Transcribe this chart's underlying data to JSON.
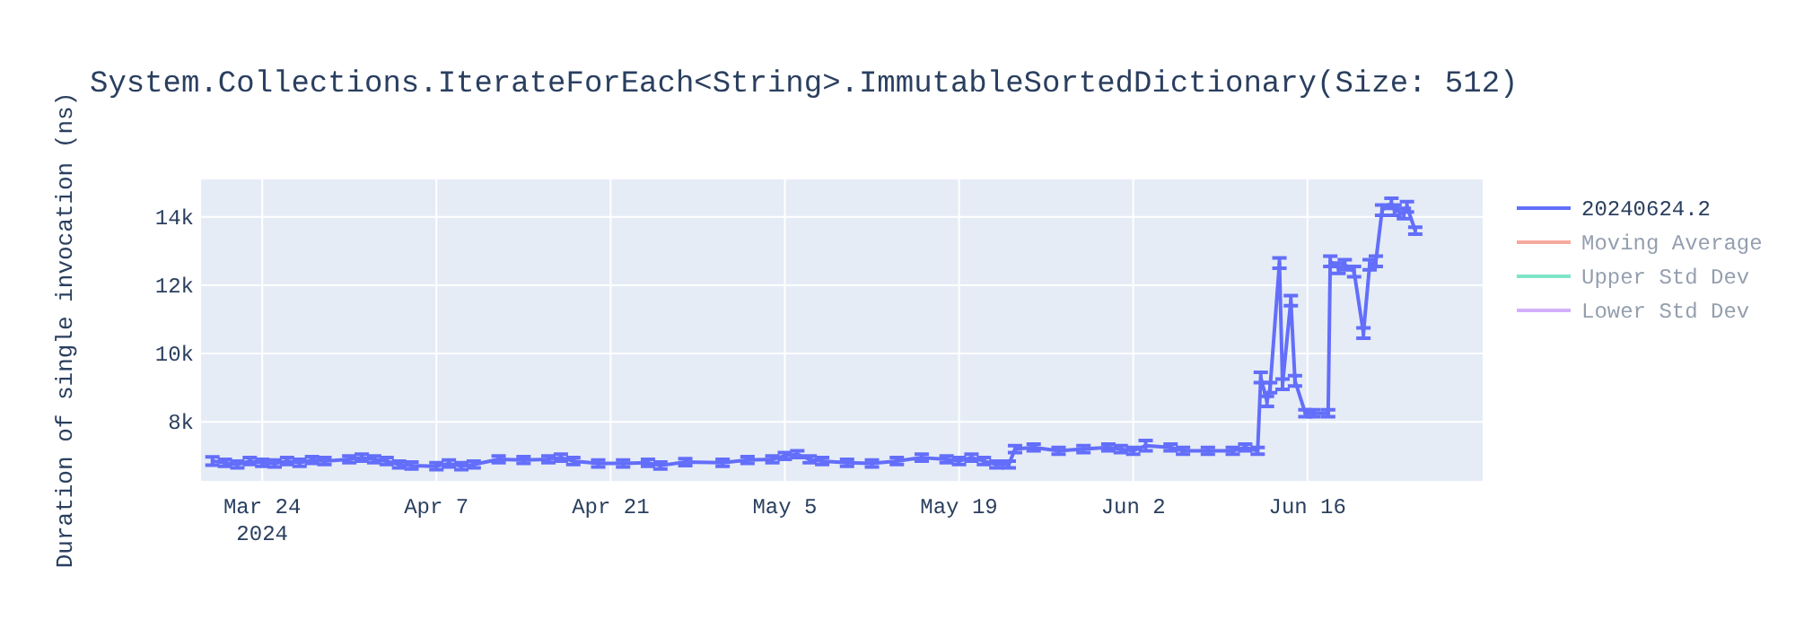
{
  "chart_data": {
    "type": "line",
    "title": "System.Collections.IterateForEach<String>.ImmutableSortedDictionary(Size: 512)",
    "ylabel": "Duration of single invocation (ns)",
    "x": [
      "2024-03-20",
      "2024-03-21",
      "2024-03-22",
      "2024-03-23",
      "2024-03-24",
      "2024-03-25",
      "2024-03-26",
      "2024-03-27",
      "2024-03-28",
      "2024-03-29",
      "2024-03-31",
      "2024-04-01",
      "2024-04-02",
      "2024-04-03",
      "2024-04-04",
      "2024-04-05",
      "2024-04-07",
      "2024-04-08",
      "2024-04-09",
      "2024-04-10",
      "2024-04-12",
      "2024-04-14",
      "2024-04-16",
      "2024-04-17",
      "2024-04-18",
      "2024-04-20",
      "2024-04-22",
      "2024-04-24",
      "2024-04-25",
      "2024-04-27",
      "2024-04-30",
      "2024-05-02",
      "2024-05-04",
      "2024-05-05",
      "2024-05-06",
      "2024-05-07",
      "2024-05-08",
      "2024-05-10",
      "2024-05-12",
      "2024-05-14",
      "2024-05-16",
      "2024-05-18",
      "2024-05-19",
      "2024-05-20",
      "2024-05-21",
      "2024-05-22",
      "2024-05-23",
      "2024-05-23T12:00",
      "2024-05-25",
      "2024-05-27",
      "2024-05-29",
      "2024-05-31",
      "2024-06-01",
      "2024-06-02",
      "2024-06-03",
      "2024-06-05",
      "2024-06-06",
      "2024-06-08",
      "2024-06-10",
      "2024-06-11",
      "2024-06-12",
      "2024-06-12T06:00",
      "2024-06-12T18:00",
      "2024-06-13",
      "2024-06-13T18:00",
      "2024-06-14",
      "2024-06-14T16:00",
      "2024-06-15",
      "2024-06-15T20:00",
      "2024-06-16T12:00",
      "2024-06-17T16:00",
      "2024-06-17T20:00",
      "2024-06-18T12:00",
      "2024-06-19",
      "2024-06-19T18:00",
      "2024-06-20T12:00",
      "2024-06-21",
      "2024-06-21T12:00",
      "2024-06-22",
      "2024-06-22T18:00",
      "2024-06-23",
      "2024-06-23T18:00",
      "2024-06-24",
      "2024-06-24T16:00"
    ],
    "series": [
      {
        "name": "20240624.2",
        "color": "#636efa",
        "values": [
          6850,
          6800,
          6750,
          6850,
          6800,
          6780,
          6850,
          6800,
          6880,
          6850,
          6900,
          6950,
          6900,
          6850,
          6750,
          6720,
          6700,
          6780,
          6700,
          6750,
          6900,
          6880,
          6900,
          6950,
          6850,
          6780,
          6780,
          6800,
          6720,
          6820,
          6800,
          6880,
          6900,
          7000,
          7050,
          6900,
          6850,
          6800,
          6780,
          6850,
          6950,
          6900,
          6850,
          6950,
          6850,
          6750,
          6750,
          7200,
          7250,
          7150,
          7200,
          7250,
          7200,
          7150,
          7300,
          7250,
          7150,
          7150,
          7150,
          7250,
          7150,
          9300,
          8600,
          9000,
          12650,
          9100,
          11550,
          9200,
          8250,
          8250,
          8250,
          12700,
          12500,
          12600,
          12400,
          10600,
          12600,
          12700,
          14200,
          14400,
          14200,
          14100,
          14300,
          13600
        ],
        "errors": [
          120,
          100,
          100,
          100,
          100,
          100,
          100,
          100,
          100,
          100,
          100,
          100,
          100,
          100,
          100,
          100,
          100,
          100,
          100,
          100,
          100,
          100,
          100,
          100,
          100,
          100,
          100,
          100,
          100,
          100,
          100,
          100,
          100,
          100,
          100,
          100,
          100,
          100,
          100,
          100,
          100,
          100,
          100,
          100,
          100,
          100,
          100,
          100,
          100,
          100,
          100,
          100,
          100,
          100,
          150,
          100,
          100,
          100,
          100,
          100,
          100,
          150,
          150,
          150,
          150,
          150,
          150,
          150,
          100,
          100,
          100,
          150,
          150,
          150,
          150,
          150,
          150,
          150,
          150,
          150,
          150,
          150,
          150,
          100
        ]
      },
      {
        "name": "Moving Average",
        "color": "#ef553b",
        "values": [
          null,
          null,
          null,
          null,
          null,
          null,
          null,
          null,
          null,
          null,
          null,
          null,
          null,
          null,
          null,
          null,
          null,
          null,
          null,
          null,
          null,
          null,
          null,
          null,
          null,
          null,
          null,
          null,
          null,
          null,
          null,
          null,
          null,
          null,
          null,
          null,
          null,
          null,
          null,
          null,
          null,
          null,
          null,
          null,
          null,
          null,
          null,
          null,
          null,
          null,
          null,
          null,
          null,
          null,
          null,
          null,
          null,
          null,
          null,
          null,
          null,
          null,
          null,
          null,
          null,
          null,
          null,
          null,
          null,
          null,
          null,
          null,
          null,
          null,
          null,
          null,
          null,
          null,
          null,
          null,
          null,
          null,
          null,
          null
        ]
      },
      {
        "name": "Upper Std Dev",
        "color": "#00cc96",
        "values": [
          null,
          null,
          null,
          null,
          null,
          null,
          null,
          null,
          null,
          null,
          null,
          null,
          null,
          null,
          null,
          null,
          null,
          null,
          null,
          null,
          null,
          null,
          null,
          null,
          null,
          null,
          null,
          null,
          null,
          null,
          null,
          null,
          null,
          null,
          null,
          null,
          null,
          null,
          null,
          null,
          null,
          null,
          null,
          null,
          null,
          null,
          null,
          null,
          null,
          null,
          null,
          null,
          null,
          null,
          null,
          null,
          null,
          null,
          null,
          null,
          null,
          null,
          null,
          null,
          null,
          null,
          null,
          null,
          null,
          null,
          null,
          null,
          null,
          null,
          null,
          null,
          null,
          null,
          null,
          null,
          null,
          null,
          null,
          null
        ]
      },
      {
        "name": "Lower Std Dev",
        "color": "#ab63fa",
        "values": [
          null,
          null,
          null,
          null,
          null,
          null,
          null,
          null,
          null,
          null,
          null,
          null,
          null,
          null,
          null,
          null,
          null,
          null,
          null,
          null,
          null,
          null,
          null,
          null,
          null,
          null,
          null,
          null,
          null,
          null,
          null,
          null,
          null,
          null,
          null,
          null,
          null,
          null,
          null,
          null,
          null,
          null,
          null,
          null,
          null,
          null,
          null,
          null,
          null,
          null,
          null,
          null,
          null,
          null,
          null,
          null,
          null,
          null,
          null,
          null,
          null,
          null,
          null,
          null,
          null,
          null,
          null,
          null,
          null,
          null,
          null,
          null,
          null,
          null,
          null,
          null,
          null,
          null,
          null,
          null,
          null,
          null,
          null,
          null
        ]
      }
    ],
    "xlim": [
      "2024-03-19T02:00",
      "2024-06-30T02:00"
    ],
    "xticks": [
      {
        "value": "2024-03-24",
        "label": "Mar 24\n2024"
      },
      {
        "value": "2024-04-07",
        "label": "Apr 7"
      },
      {
        "value": "2024-04-21",
        "label": "Apr 21"
      },
      {
        "value": "2024-05-05",
        "label": "May 5"
      },
      {
        "value": "2024-05-19",
        "label": "May 19"
      },
      {
        "value": "2024-06-02",
        "label": "Jun 2"
      },
      {
        "value": "2024-06-16",
        "label": "Jun 16"
      }
    ],
    "ylim": [
      6270,
      15100
    ],
    "yticks": [
      {
        "value": 8000,
        "label": "8k"
      },
      {
        "value": 10000,
        "label": "10k"
      },
      {
        "value": 12000,
        "label": "12k"
      },
      {
        "value": 14000,
        "label": "14k"
      }
    ],
    "grid": true,
    "legend": "right",
    "marker": "none",
    "line_style": "solid"
  }
}
